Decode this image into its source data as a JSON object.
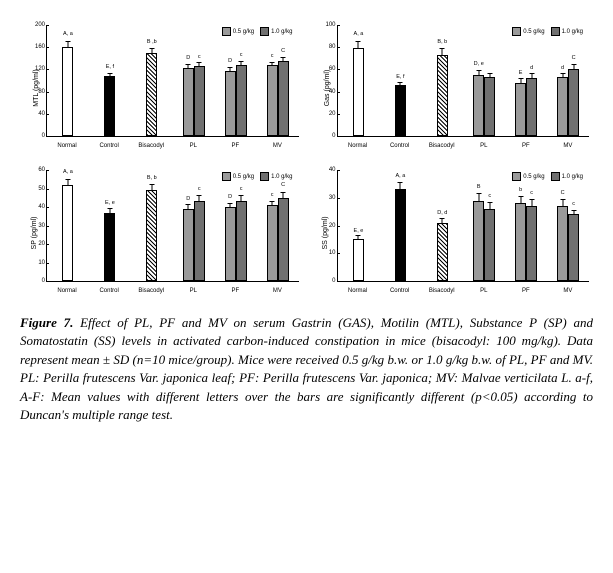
{
  "colors": {
    "white": "#ffffff",
    "black": "#000000",
    "hatch": "repeating-linear-gradient(45deg,#000 0,#000 1px,#fff 1px,#fff 3px)",
    "gray1": "#9a9a9a",
    "gray2": "#707070"
  },
  "legend": {
    "dose1": "0.5 g/kg",
    "dose2": "1.0 g/kg"
  },
  "xcats": [
    "Normal",
    "Control",
    "Bisacodyl",
    "PL",
    "PF",
    "MV"
  ],
  "charts": [
    {
      "ylabel": "MTL (pg/ml)",
      "ymax": 200,
      "ytick": 40,
      "groups": [
        {
          "bars": [
            {
              "v": 160,
              "e": 14,
              "f": "white",
              "s": "A, a"
            }
          ]
        },
        {
          "bars": [
            {
              "v": 108,
              "e": 8,
              "f": "black",
              "s": "E, f"
            }
          ]
        },
        {
          "bars": [
            {
              "v": 150,
              "e": 10,
              "f": "hatch",
              "s": "B ,b"
            }
          ]
        },
        {
          "bars": [
            {
              "v": 122,
              "e": 10,
              "f": "gray1",
              "s": "D"
            },
            {
              "v": 126,
              "e": 9,
              "f": "gray2",
              "s": "c"
            }
          ]
        },
        {
          "bars": [
            {
              "v": 118,
              "e": 9,
              "f": "gray1",
              "s": "D"
            },
            {
              "v": 128,
              "e": 10,
              "f": "gray2",
              "s": "c"
            }
          ]
        },
        {
          "bars": [
            {
              "v": 128,
              "e": 8,
              "f": "gray1",
              "s": "c"
            },
            {
              "v": 136,
              "e": 9,
              "f": "gray2",
              "s": "C"
            }
          ]
        }
      ]
    },
    {
      "ylabel": "Gas (pg/ml)",
      "ymax": 100,
      "ytick": 20,
      "groups": [
        {
          "bars": [
            {
              "v": 79,
              "e": 8,
              "f": "white",
              "s": "A, a"
            }
          ]
        },
        {
          "bars": [
            {
              "v": 46,
              "e": 4,
              "f": "black",
              "s": "E, f"
            }
          ]
        },
        {
          "bars": [
            {
              "v": 73,
              "e": 7,
              "f": "hatch",
              "s": "B, b"
            }
          ]
        },
        {
          "bars": [
            {
              "v": 55,
              "e": 6,
              "f": "gray1",
              "s": "D, e"
            },
            {
              "v": 53,
              "e": 5,
              "f": "gray2",
              "s": ""
            }
          ]
        },
        {
          "bars": [
            {
              "v": 48,
              "e": 5,
              "f": "gray1",
              "s": "E"
            },
            {
              "v": 52,
              "e": 6,
              "f": "gray2",
              "s": "d"
            }
          ]
        },
        {
          "bars": [
            {
              "v": 53,
              "e": 5,
              "f": "gray1",
              "s": "d"
            },
            {
              "v": 60,
              "e": 6,
              "f": "gray2",
              "s": "C"
            }
          ]
        }
      ]
    },
    {
      "ylabel": "SP (pg/ml)",
      "ymax": 60,
      "ytick": 10,
      "groups": [
        {
          "bars": [
            {
              "v": 52,
              "e": 4,
              "f": "white",
              "s": "A, a"
            }
          ]
        },
        {
          "bars": [
            {
              "v": 37,
              "e": 3,
              "f": "black",
              "s": "E, e"
            }
          ]
        },
        {
          "bars": [
            {
              "v": 49,
              "e": 4,
              "f": "hatch",
              "s": "B, b"
            }
          ]
        },
        {
          "bars": [
            {
              "v": 39,
              "e": 3,
              "f": "gray1",
              "s": "D"
            },
            {
              "v": 43,
              "e": 4,
              "f": "gray2",
              "s": "c"
            }
          ]
        },
        {
          "bars": [
            {
              "v": 40,
              "e": 3,
              "f": "gray1",
              "s": "D"
            },
            {
              "v": 43,
              "e": 4,
              "f": "gray2",
              "s": "c"
            }
          ]
        },
        {
          "bars": [
            {
              "v": 41,
              "e": 3,
              "f": "gray1",
              "s": "c"
            },
            {
              "v": 45,
              "e": 4,
              "f": "gray2",
              "s": "C"
            }
          ]
        }
      ]
    },
    {
      "ylabel": "SS (pg/ml)",
      "ymax": 40,
      "ytick": 10,
      "groups": [
        {
          "bars": [
            {
              "v": 15,
              "e": 2,
              "f": "white",
              "s": "E, e"
            }
          ]
        },
        {
          "bars": [
            {
              "v": 33,
              "e": 3,
              "f": "black",
              "s": "A, a"
            }
          ]
        },
        {
          "bars": [
            {
              "v": 21,
              "e": 2,
              "f": "hatch",
              "s": "D, d"
            }
          ]
        },
        {
          "bars": [
            {
              "v": 29,
              "e": 3,
              "f": "gray1",
              "s": "B"
            },
            {
              "v": 26,
              "e": 3,
              "f": "gray2",
              "s": "c"
            }
          ]
        },
        {
          "bars": [
            {
              "v": 28,
              "e": 3,
              "f": "gray1",
              "s": "b"
            },
            {
              "v": 27,
              "e": 3,
              "f": "gray2",
              "s": "c"
            }
          ]
        },
        {
          "bars": [
            {
              "v": 27,
              "e": 3,
              "f": "gray1",
              "s": "C"
            },
            {
              "v": 24,
              "e": 2,
              "f": "gray2",
              "s": "c"
            }
          ]
        }
      ]
    }
  ],
  "caption": {
    "label": "Figure 7.",
    "text": " Effect of PL, PF and MV on serum Gastrin (GAS), Motilin (MTL), Substance P (SP) and Somatostatin (SS) levels in activated carbon-induced constipation in mice (bisacodyl: 100 mg/kg). Data represent mean ± SD (n=10 mice/group). Mice were received 0.5 g/kg b.w. or 1.0 g/kg b.w. of PL, PF and MV. PL: Perilla frutescens Var. japonica leaf; PF: Perilla frutescens Var. japonica; MV: Malvae verticilata L. a-f, A-F: Mean values with different letters over the bars are significantly different (p<0.05) according to Duncan's multiple range test."
  }
}
